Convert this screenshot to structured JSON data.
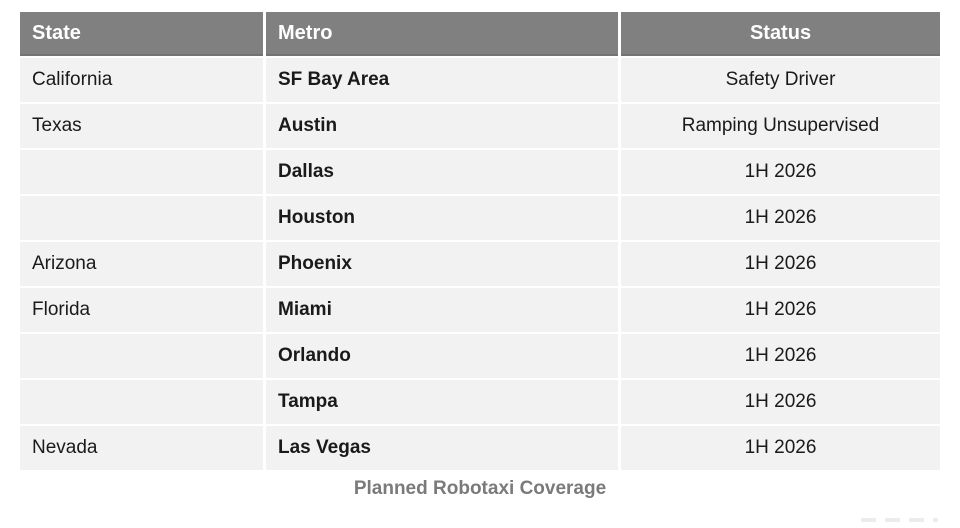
{
  "table": {
    "caption": "Planned Robotaxi Coverage",
    "columns": [
      "State",
      "Metro",
      "Status"
    ],
    "rows": [
      {
        "state": "California",
        "metro": "SF Bay Area",
        "status": "Safety Driver"
      },
      {
        "state": "Texas",
        "metro": "Austin",
        "status": "Ramping Unsupervised"
      },
      {
        "state": "",
        "metro": "Dallas",
        "status": "1H 2026"
      },
      {
        "state": "",
        "metro": "Houston",
        "status": "1H 2026"
      },
      {
        "state": "Arizona",
        "metro": "Phoenix",
        "status": "1H 2026"
      },
      {
        "state": "Florida",
        "metro": "Miami",
        "status": "1H 2026"
      },
      {
        "state": "",
        "metro": "Orlando",
        "status": "1H 2026"
      },
      {
        "state": "",
        "metro": "Tampa",
        "status": "1H 2026"
      },
      {
        "state": "Nevada",
        "metro": "Las Vegas",
        "status": "1H 2026"
      }
    ]
  },
  "colors": {
    "page_bg": "#ffffff",
    "header_bg": "#808080",
    "header_text": "#ffffff",
    "row_bg": "#f2f2f2",
    "body_text": "#1a1a1a",
    "caption_text": "#7a7a7a"
  }
}
